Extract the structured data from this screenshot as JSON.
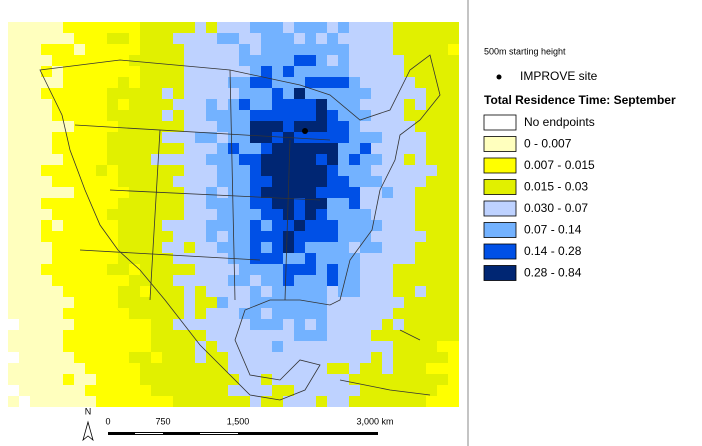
{
  "map": {
    "compass": "N",
    "scale_bar": {
      "labels": [
        "0",
        "750",
        "1,500",
        "3,000 km"
      ]
    }
  },
  "legend": {
    "note": "500m starting height",
    "site": "IMPROVE site",
    "title": "Total Residence Time: September",
    "classes": [
      {
        "label": "No endpoints",
        "color": "#ffffff"
      },
      {
        "label": "0 - 0.007",
        "color": "#ffffbe"
      },
      {
        "label": "0.007 - 0.015",
        "color": "#ffff00"
      },
      {
        "label": "0.015 - 0.03",
        "color": "#e1f000"
      },
      {
        "label": "0.030 - 0.07",
        "color": "#bed2ff"
      },
      {
        "label": "0.07 - 0.14",
        "color": "#73b2ff"
      },
      {
        "label": "0.14 - 0.28",
        "color": "#0050e6"
      },
      {
        "label": "0.28 - 0.84",
        "color": "#002673"
      }
    ]
  }
}
